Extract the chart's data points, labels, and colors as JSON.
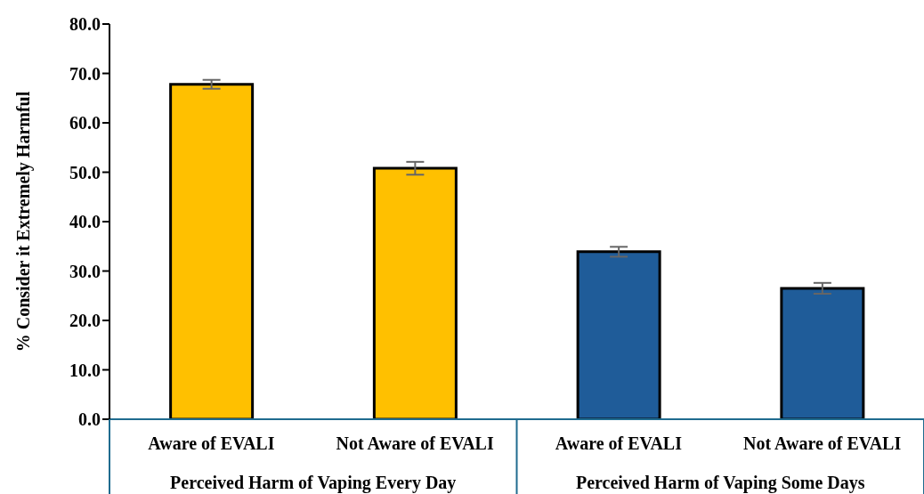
{
  "chart_data": {
    "type": "bar",
    "ylabel": "% Consider it Extremely Harmful",
    "categories": [
      "Aware of EVALI",
      "Not Aware of EVALI",
      "Aware of EVALI",
      "Not Aware of EVALI"
    ],
    "values": [
      67.8,
      50.8,
      33.9,
      26.5
    ],
    "errors": [
      0.9,
      1.3,
      1.0,
      1.1
    ],
    "colors": [
      "#ffc000",
      "#ffc000",
      "#1f5c99",
      "#1f5c99"
    ],
    "ylim": [
      0,
      80
    ],
    "yticks": [
      {
        "value": 0,
        "label": "0.0"
      },
      {
        "value": 10,
        "label": "10.0"
      },
      {
        "value": 20,
        "label": "20.0"
      },
      {
        "value": 30,
        "label": "30.0"
      },
      {
        "value": 40,
        "label": "40.0"
      },
      {
        "value": 50,
        "label": "50.0"
      },
      {
        "value": 60,
        "label": "60.0"
      },
      {
        "value": 70,
        "label": "70.0"
      },
      {
        "value": 80,
        "label": "80.0"
      }
    ],
    "annotations": [
      "Perceived Harm of Vaping Every Day",
      "Perceived Harm of Vaping Some Days"
    ]
  }
}
